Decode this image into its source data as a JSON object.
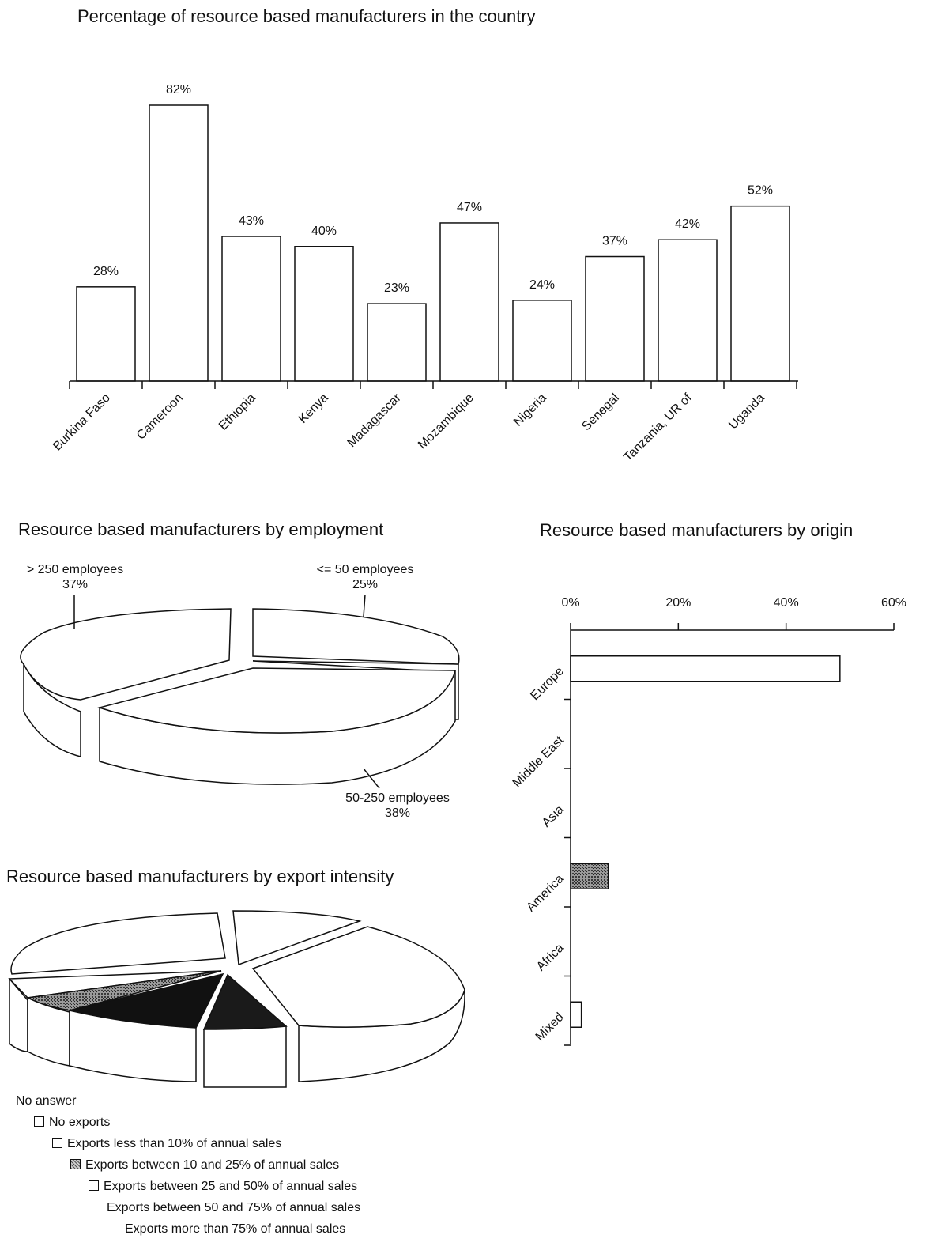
{
  "chart_data": [
    {
      "type": "bar",
      "title": "Percentage of resource based manufacturers in the country",
      "categories": [
        "Burkina Faso",
        "Cameroon",
        "Ethiopia",
        "Kenya",
        "Madagascar",
        "Mozambique",
        "Nigeria",
        "Senegal",
        "Tanzania, UR of",
        "Uganda"
      ],
      "values": [
        28,
        82,
        43,
        40,
        23,
        47,
        24,
        37,
        42,
        52
      ],
      "data_labels": [
        "28%",
        "82%",
        "43%",
        "40%",
        "23%",
        "47%",
        "24%",
        "37%",
        "42%",
        "52%"
      ],
      "ylim": [
        0,
        82
      ],
      "grid": false
    },
    {
      "type": "pie",
      "title": "Resource based manufacturers by employment",
      "slices": [
        {
          "label": "> 250 employees",
          "value_label": "37%",
          "value": 37
        },
        {
          "label": "<= 50 employees",
          "value_label": "25%",
          "value": 25
        },
        {
          "label": "50-250 employees",
          "value_label": "38%",
          "value": 38
        }
      ]
    },
    {
      "type": "bar",
      "orientation": "horizontal",
      "title": "Resource based manufacturers by origin",
      "categories": [
        "Europe",
        "Middle East",
        "Asia",
        "America",
        "Africa",
        "Mixed"
      ],
      "values": [
        50,
        0,
        0,
        7,
        0,
        2
      ],
      "xticks": [
        "0%",
        "20%",
        "40%",
        "60%"
      ],
      "xlim": [
        0,
        60
      ],
      "colors": [
        "#ffffff",
        "#ffffff",
        "#ffffff",
        "#888888",
        "#ffffff",
        "#ffffff"
      ]
    },
    {
      "type": "pie",
      "title": "Resource based manufacturers by export intensity",
      "legend": [
        {
          "label": "No answer",
          "swatch": "none"
        },
        {
          "label": "No exports",
          "swatch": "white"
        },
        {
          "label": "Exports less than 10% of annual sales",
          "swatch": "white"
        },
        {
          "label": "Exports between 10 and 25% of annual sales",
          "swatch": "stipple"
        },
        {
          "label": "Exports between 25 and 50% of annual sales",
          "swatch": "white"
        },
        {
          "label": "Exports between 50 and 75% of annual sales",
          "swatch": "none"
        },
        {
          "label": "Exports more than 75% of annual sales",
          "swatch": "none"
        }
      ],
      "legend_placement": "bottom"
    }
  ]
}
